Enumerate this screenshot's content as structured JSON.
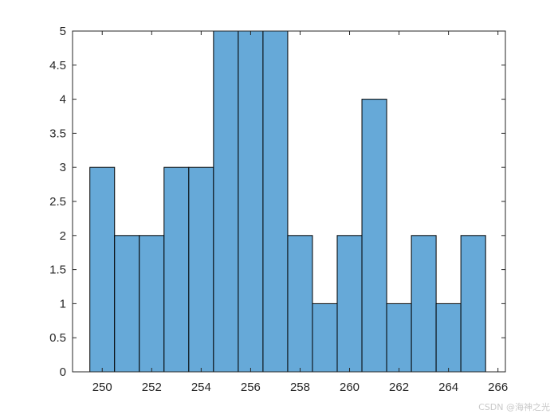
{
  "chart_data": {
    "type": "bar",
    "subtype": "histogram",
    "bin_edges": [
      249.5,
      250.5,
      251.5,
      252.5,
      253.5,
      254.5,
      255.5,
      256.5,
      257.5,
      258.5,
      259.5,
      260.5,
      261.5,
      262.5,
      263.5,
      264.5,
      265.5
    ],
    "values": [
      3,
      2,
      2,
      3,
      3,
      5,
      5,
      5,
      2,
      1,
      2,
      4,
      1,
      2,
      1,
      2
    ],
    "xlim": [
      248.8,
      266.3
    ],
    "ylim": [
      0,
      5
    ],
    "xticks": [
      250,
      252,
      254,
      256,
      258,
      260,
      262,
      264,
      266
    ],
    "yticks": [
      0,
      0.5,
      1,
      1.5,
      2,
      2.5,
      3,
      3.5,
      4,
      4.5,
      5
    ],
    "bar_color": "#66a9d8",
    "edge_color": "#000000",
    "title": "",
    "xlabel": "",
    "ylabel": "",
    "grid": false,
    "box": true
  },
  "watermark": "CSDN @海神之光"
}
